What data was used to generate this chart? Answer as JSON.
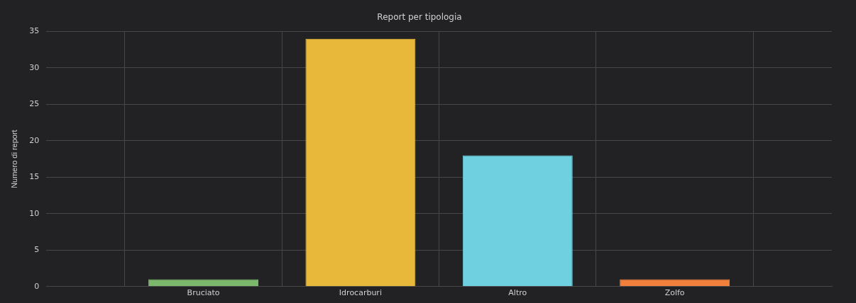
{
  "chart_data": {
    "type": "bar",
    "title": "Report per tipologia",
    "ylabel": "Numero di report",
    "categories": [
      "Bruciato",
      "Idrocarburi",
      "Altro",
      "Zolfo"
    ],
    "values": [
      1,
      34,
      18,
      1
    ],
    "colors": [
      "#7cb86c",
      "#e8b83a",
      "#6fd0e0",
      "#f0803c"
    ],
    "ylim": [
      0,
      35
    ],
    "yticks": [
      0,
      5,
      10,
      15,
      20,
      25,
      30,
      35
    ],
    "grid": true
  }
}
